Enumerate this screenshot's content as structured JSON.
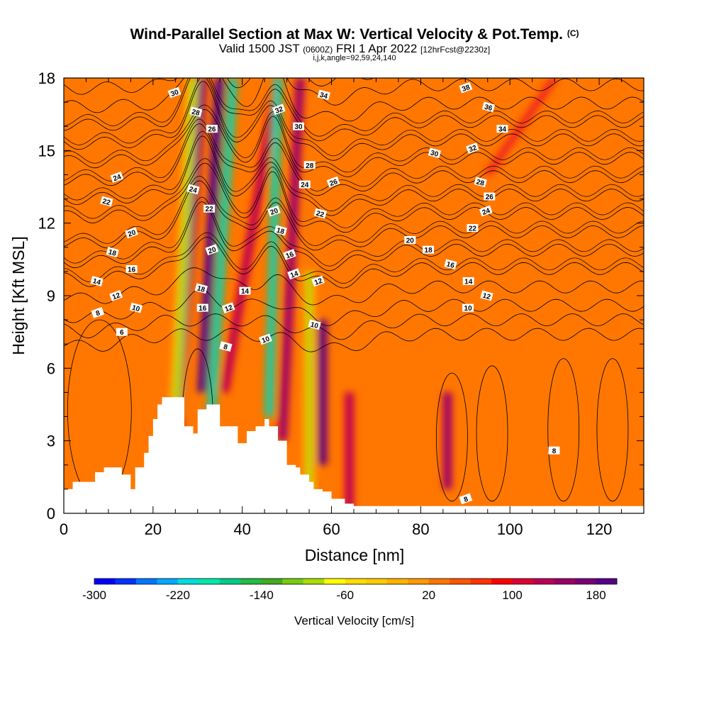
{
  "header": {
    "title": "Wind-Parallel Section at Max W: Vertical Velocity & Pot.Temp.",
    "title_unit": "(C)",
    "valid_prefix": "Valid 1500 JST",
    "valid_utc": "(0600Z)",
    "valid_date": "FRI 1 Apr 2022",
    "forecast": "[12hrFcst@2230z]",
    "indices": "i,j,k,angle=92,59,24,140"
  },
  "chart_data": {
    "type": "heatmap",
    "xlabel": "Distance [nm]",
    "ylabel": "Height [Kft MSL]",
    "xlim": [
      0,
      130
    ],
    "ylim": [
      0,
      18
    ],
    "xticks": [
      0,
      20,
      40,
      60,
      80,
      100,
      120
    ],
    "yticks": [
      0,
      3,
      6,
      9,
      12,
      15,
      18
    ],
    "colorbar": {
      "label": "Vertical Velocity [cm/s]",
      "min": -300,
      "max": 200,
      "step": 20,
      "tick_labels": [
        -300,
        -220,
        -140,
        -60,
        20,
        100,
        180
      ],
      "colors": [
        "#0000ff",
        "#0033ff",
        "#0077ff",
        "#00aaff",
        "#00dddd",
        "#00e8a8",
        "#00cc88",
        "#22bb44",
        "#44aa22",
        "#77cc11",
        "#aadd00",
        "#ffff00",
        "#ffdd00",
        "#ffcc00",
        "#ffb300",
        "#ff9900",
        "#ff7700",
        "#ff5500",
        "#ff3300",
        "#ff0000",
        "#dd0033",
        "#bb0055",
        "#990066",
        "#770077",
        "#550088"
      ]
    },
    "background_w": 20,
    "updrafts": [
      {
        "x0": 24,
        "x1": 31,
        "z0": 0,
        "z1": 18,
        "w": 150
      },
      {
        "x0": 31,
        "x1": 35,
        "z0": 5,
        "z1": 18,
        "w": 190
      },
      {
        "x0": 36,
        "x1": 48,
        "z0": 5,
        "z1": 18,
        "w": 110
      },
      {
        "x0": 49,
        "x1": 53,
        "z0": 3,
        "z1": 18,
        "w": 130
      },
      {
        "x0": 58,
        "x1": 58,
        "z0": 2,
        "z1": 8,
        "w": 160
      },
      {
        "x0": 64,
        "x1": 64,
        "z0": 0,
        "z1": 5,
        "w": 110
      },
      {
        "x0": 86,
        "x1": 86,
        "z0": 1,
        "z1": 5,
        "w": 120
      },
      {
        "x0": 95,
        "x1": 110,
        "z0": 14,
        "z1": 18,
        "w": 65
      }
    ],
    "downdrafts": [
      {
        "x0": 33,
        "x1": 38,
        "z0": 4,
        "z1": 18,
        "w": -150
      },
      {
        "x0": 46,
        "x1": 48,
        "z0": 4,
        "z1": 18,
        "w": -150
      },
      {
        "x0": 25,
        "x1": 29,
        "z0": 4,
        "z1": 18,
        "w": -70
      },
      {
        "x0": 55,
        "x1": 55,
        "z0": 0,
        "z1": 10,
        "w": -60
      }
    ],
    "theta_contours": [
      6,
      8,
      10,
      12,
      14,
      16,
      18,
      20,
      22,
      24,
      26,
      28,
      30,
      32,
      34,
      36,
      38
    ],
    "contour_labels": [
      {
        "text": "30",
        "x": 24.8,
        "z": 17.4
      },
      {
        "text": "28",
        "x": 29.6,
        "z": 16.6
      },
      {
        "text": "26",
        "x": 33.2,
        "z": 15.9
      },
      {
        "text": "32",
        "x": 48.2,
        "z": 16.7
      },
      {
        "text": "34",
        "x": 58.3,
        "z": 17.3
      },
      {
        "text": "30",
        "x": 52.6,
        "z": 16.0
      },
      {
        "text": "38",
        "x": 90.1,
        "z": 17.6
      },
      {
        "text": "36",
        "x": 95.2,
        "z": 16.8
      },
      {
        "text": "34",
        "x": 98.3,
        "z": 15.9
      },
      {
        "text": "32",
        "x": 91.6,
        "z": 15.1
      },
      {
        "text": "30",
        "x": 83.1,
        "z": 14.9
      },
      {
        "text": "28",
        "x": 55.1,
        "z": 14.4
      },
      {
        "text": "24",
        "x": 11.9,
        "z": 13.9
      },
      {
        "text": "24",
        "x": 29.0,
        "z": 13.4
      },
      {
        "text": "24",
        "x": 54.0,
        "z": 13.6
      },
      {
        "text": "26",
        "x": 60.4,
        "z": 13.7
      },
      {
        "text": "28",
        "x": 93.4,
        "z": 13.7
      },
      {
        "text": "26",
        "x": 95.4,
        "z": 13.1
      },
      {
        "text": "24",
        "x": 94.6,
        "z": 12.5
      },
      {
        "text": "22",
        "x": 9.6,
        "z": 12.9
      },
      {
        "text": "22",
        "x": 32.6,
        "z": 12.6
      },
      {
        "text": "20",
        "x": 47.1,
        "z": 12.5
      },
      {
        "text": "22",
        "x": 57.5,
        "z": 12.4
      },
      {
        "text": "22",
        "x": 91.6,
        "z": 11.8
      },
      {
        "text": "20",
        "x": 15.2,
        "z": 11.6
      },
      {
        "text": "18",
        "x": 48.6,
        "z": 11.7
      },
      {
        "text": "20",
        "x": 77.6,
        "z": 11.3
      },
      {
        "text": "20",
        "x": 33.2,
        "z": 10.9
      },
      {
        "text": "18",
        "x": 10.9,
        "z": 10.8
      },
      {
        "text": "18",
        "x": 81.7,
        "z": 10.9
      },
      {
        "text": "16",
        "x": 50.6,
        "z": 10.7
      },
      {
        "text": "16",
        "x": 86.7,
        "z": 10.3
      },
      {
        "text": "16",
        "x": 15.2,
        "z": 10.1
      },
      {
        "text": "14",
        "x": 51.6,
        "z": 9.9
      },
      {
        "text": "14",
        "x": 7.4,
        "z": 9.6
      },
      {
        "text": "14",
        "x": 90.7,
        "z": 9.6
      },
      {
        "text": "12",
        "x": 57.0,
        "z": 9.6
      },
      {
        "text": "18",
        "x": 30.8,
        "z": 9.3
      },
      {
        "text": "14",
        "x": 40.6,
        "z": 9.2
      },
      {
        "text": "12",
        "x": 11.7,
        "z": 9.0
      },
      {
        "text": "12",
        "x": 94.8,
        "z": 9.0
      },
      {
        "text": "16",
        "x": 31.1,
        "z": 8.5
      },
      {
        "text": "12",
        "x": 36.9,
        "z": 8.5
      },
      {
        "text": "10",
        "x": 16.2,
        "z": 8.5
      },
      {
        "text": "10",
        "x": 90.6,
        "z": 8.5
      },
      {
        "text": "8",
        "x": 7.6,
        "z": 8.3
      },
      {
        "text": "10",
        "x": 56.2,
        "z": 7.8
      },
      {
        "text": "6",
        "x": 13.0,
        "z": 7.5
      },
      {
        "text": "10",
        "x": 45.2,
        "z": 7.2
      },
      {
        "text": "8",
        "x": 36.3,
        "z": 6.9
      },
      {
        "text": "8",
        "x": 109.9,
        "z": 2.6
      },
      {
        "text": "8",
        "x": 90.1,
        "z": 0.6
      }
    ],
    "terrain_outline": [
      [
        0,
        1.0
      ],
      [
        2,
        1.3
      ],
      [
        5,
        1.3
      ],
      [
        7,
        1.7
      ],
      [
        9,
        1.9
      ],
      [
        12,
        1.9
      ],
      [
        13,
        1.6
      ],
      [
        14,
        1.6
      ],
      [
        15,
        1.0
      ],
      [
        16,
        1.0
      ],
      [
        16,
        1.9
      ],
      [
        18,
        2.5
      ],
      [
        19,
        3.2
      ],
      [
        20,
        3.9
      ],
      [
        21,
        4.5
      ],
      [
        22,
        4.8
      ],
      [
        25,
        4.8
      ],
      [
        27,
        4.3
      ],
      [
        27,
        3.6
      ],
      [
        29,
        3.3
      ],
      [
        30,
        3.3
      ],
      [
        30,
        4.3
      ],
      [
        32,
        4.5
      ],
      [
        34,
        4.5
      ],
      [
        35,
        3.6
      ],
      [
        38,
        3.6
      ],
      [
        39,
        2.9
      ],
      [
        40,
        2.9
      ],
      [
        41,
        3.4
      ],
      [
        42,
        3.4
      ],
      [
        43,
        3.6
      ],
      [
        45,
        3.9
      ],
      [
        46,
        3.6
      ],
      [
        48,
        3.0
      ],
      [
        49,
        3.0
      ],
      [
        50,
        2.0
      ],
      [
        51,
        2.0
      ],
      [
        52,
        1.9
      ],
      [
        53,
        1.6
      ],
      [
        55,
        1.3
      ],
      [
        56,
        1.0
      ],
      [
        58,
        0.9
      ],
      [
        59,
        0.9
      ],
      [
        60,
        0.6
      ],
      [
        62,
        0.6
      ],
      [
        63,
        0.4
      ],
      [
        64,
        0.4
      ],
      [
        65,
        0.3
      ],
      [
        130,
        0.3
      ]
    ]
  }
}
